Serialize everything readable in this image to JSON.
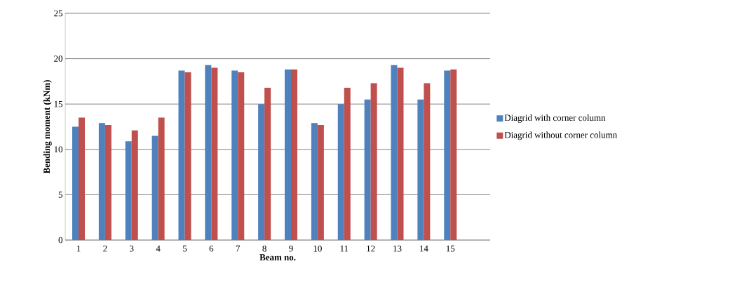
{
  "chart_data": {
    "type": "bar",
    "xlabel": "Beam no.",
    "ylabel": "Bending moment  (kNm)",
    "categories": [
      "1",
      "2",
      "3",
      "4",
      "5",
      "6",
      "7",
      "8",
      "9",
      "10",
      "11",
      "12",
      "13",
      "14",
      "15",
      null
    ],
    "series": [
      {
        "name": "Diagrid with corner column",
        "color": "#4f81bd",
        "values": [
          12.5,
          12.9,
          10.9,
          11.5,
          18.7,
          19.3,
          18.7,
          15.0,
          18.8,
          12.9,
          15.0,
          15.5,
          19.3,
          15.5,
          18.7,
          null
        ]
      },
      {
        "name": "Diagrid without corner column",
        "color": "#c0504d",
        "values": [
          13.5,
          12.7,
          12.1,
          13.5,
          18.5,
          19.0,
          18.5,
          16.8,
          18.8,
          12.7,
          16.8,
          17.3,
          19.0,
          17.3,
          18.8,
          null
        ]
      }
    ],
    "ylim": [
      0,
      25
    ],
    "yticks": [
      0,
      5,
      10,
      15,
      20,
      25
    ],
    "grid": "y",
    "legend": "right"
  }
}
